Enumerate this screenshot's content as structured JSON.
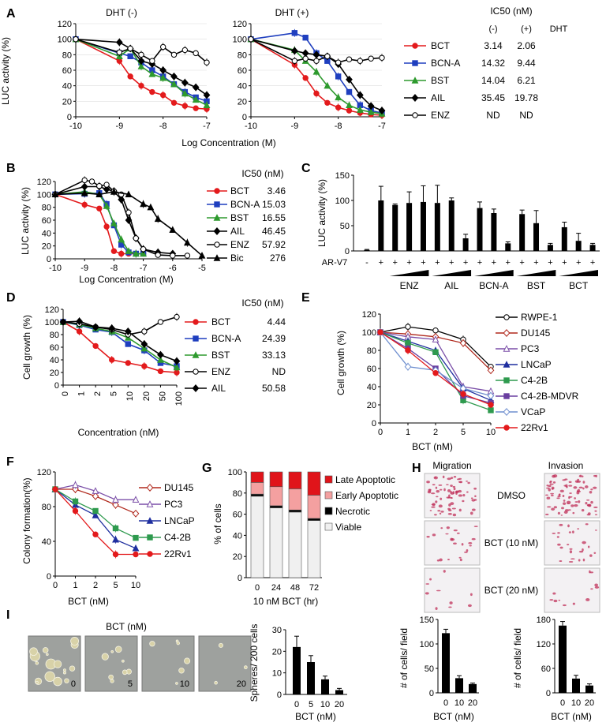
{
  "colors": {
    "BCT": "#e31a1c",
    "BCN-A": "#1f3fbf",
    "BST": "#2e9a2e",
    "AIL": "#000000",
    "ENZ": "#000000",
    "Bic": "#000000",
    "RWPE-1": "#000000",
    "DU145": "#b0281c",
    "PC3": "#7b4fa8",
    "LNCaP": "#1f2f9f",
    "C4-2B": "#2e9a4e",
    "C4-2B-MDVR": "#6a3fa0",
    "VCaP": "#6f8fcf",
    "22Rv1": "#e31a1c",
    "late": "#e0141a",
    "early": "#f4a0a0",
    "necrotic": "#000000",
    "viable": "#f0f0f0"
  },
  "panelA": {
    "letter": "A",
    "left": {
      "title": "DHT (-)"
    },
    "right": {
      "title": "DHT (+)"
    },
    "ylabel": "LUC activity (%)",
    "xlabel": "Log Concentration (M)",
    "yticks": [
      "0",
      "20",
      "40",
      "60",
      "80",
      "100",
      "120"
    ],
    "xticks": [
      "-10",
      "-9",
      "-8",
      "-7"
    ],
    "table": {
      "header": "IC50 (nM)",
      "col_minus": "(-)",
      "col_plus": "(+)",
      "col_dht": "DHT",
      "rows": [
        {
          "name": "BCT",
          "minus": "3.14",
          "plus": "2.06"
        },
        {
          "name": "BCN-A",
          "minus": "14.32",
          "plus": "9.44"
        },
        {
          "name": "BST",
          "minus": "14.04",
          "plus": "6.21"
        },
        {
          "name": "AIL",
          "minus": "35.45",
          "plus": "19.78"
        },
        {
          "name": "ENZ",
          "minus": "ND",
          "plus": "ND"
        }
      ]
    }
  },
  "panelB": {
    "letter": "B",
    "ylabel": "LUC activity (%)",
    "xlabel": "Log Concentration (M)",
    "yticks": [
      "0",
      "20",
      "40",
      "60",
      "80",
      "100",
      "120"
    ],
    "xticks": [
      "-10",
      "-9",
      "-8",
      "-7",
      "-6",
      "-5"
    ],
    "header": "IC50 (nM)",
    "legend": [
      {
        "name": "BCT",
        "ic50": "3.46"
      },
      {
        "name": "BCN-A",
        "ic50": "15.03"
      },
      {
        "name": "BST",
        "ic50": "16.55"
      },
      {
        "name": "AIL",
        "ic50": "46.45"
      },
      {
        "name": "ENZ",
        "ic50": "57.92"
      },
      {
        "name": "Bic",
        "ic50": "276"
      }
    ]
  },
  "panelC": {
    "letter": "C",
    "ylabel": "LUC activity (%)",
    "yticks": [
      "0",
      "50",
      "100",
      "150"
    ],
    "row_label": "AR-V7",
    "signs": [
      "-",
      "+",
      "+",
      "+",
      "+",
      "+",
      "+",
      "+",
      "+",
      "+",
      "+",
      "+",
      "+",
      "+",
      "+",
      "+",
      "+"
    ],
    "groups": [
      "ENZ",
      "AIL",
      "BCN-A",
      "BST",
      "BCT"
    ]
  },
  "panelD": {
    "letter": "D",
    "ylabel": "Cell growth (%)",
    "xlabel": "Concentration (nM)",
    "yticks": [
      "0",
      "20",
      "40",
      "60",
      "80",
      "100",
      "120"
    ],
    "xticks": [
      "0",
      "1",
      "2",
      "5",
      "10",
      "20",
      "50",
      "100"
    ],
    "header": "IC50 (nM)",
    "legend": [
      {
        "name": "BCT",
        "ic50": "4.44"
      },
      {
        "name": "BCN-A",
        "ic50": "24.39"
      },
      {
        "name": "BST",
        "ic50": "33.13"
      },
      {
        "name": "ENZ",
        "ic50": "ND"
      },
      {
        "name": "AIL",
        "ic50": "50.58"
      }
    ]
  },
  "panelE": {
    "letter": "E",
    "ylabel": "Cell growth (%)",
    "xlabel": "BCT (nM)",
    "yticks": [
      "0",
      "20",
      "40",
      "60",
      "80",
      "100",
      "120"
    ],
    "xticks": [
      "0",
      "1",
      "2",
      "5",
      "10"
    ],
    "legend": [
      "RWPE-1",
      "DU145",
      "PC3",
      "LNCaP",
      "C4-2B",
      "C4-2B-MDVR",
      "VCaP",
      "22Rv1"
    ]
  },
  "panelF": {
    "letter": "F",
    "ylabel": "Colony formation(%)",
    "xlabel": "BCT (nM)",
    "yticks": [
      "0",
      "40",
      "80",
      "120"
    ],
    "xticks": [
      "0",
      "1",
      "2",
      "5",
      "10"
    ],
    "legend": [
      "DU145",
      "PC3",
      "LNCaP",
      "C4-2B",
      "22Rv1"
    ]
  },
  "panelG": {
    "letter": "G",
    "ylabel": "% of cells",
    "xlabel": "10 nM BCT (hr)",
    "yticks": [
      "0",
      "20",
      "40",
      "60",
      "80",
      "100"
    ],
    "xticks": [
      "0",
      "24",
      "48",
      "72"
    ],
    "legend": [
      "Late Apoptotic",
      "Early Apoptotic",
      "Necrotic",
      "Viable"
    ]
  },
  "panelH": {
    "letter": "H",
    "migration": "Migration",
    "invasion": "Invasion",
    "rows": [
      "DMSO",
      "BCT (10 nM)",
      "BCT (20 nM)"
    ],
    "bar_ylabel": "# of cells/ field",
    "bar_xlabel": "BCT (nM)",
    "bar_xticks": [
      "0",
      "10",
      "20"
    ],
    "mig_yticks": [
      "0",
      "50",
      "100",
      "150"
    ],
    "inv_yticks": [
      "0",
      "60",
      "120",
      "180"
    ]
  },
  "panelI": {
    "letter": "I",
    "title": "BCT (nM)",
    "photos": [
      "0",
      "5",
      "10",
      "20"
    ],
    "bar_ylabel": "Spheres/ 200 cells",
    "bar_xlabel": "BCT (nM)",
    "bar_xticks": [
      "0",
      "5",
      "10",
      "20"
    ],
    "bar_yticks": [
      "0",
      "10",
      "20",
      "30"
    ]
  },
  "chart_data": [
    {
      "type": "line",
      "id": "A-left",
      "title": "DHT (-)",
      "xlabel": "Log Concentration (M)",
      "ylabel": "LUC activity (%)",
      "xlim": [
        -10,
        -7
      ],
      "ylim": [
        0,
        120
      ],
      "x": [
        -10,
        -9,
        -8.75,
        -8.5,
        -8.25,
        -8,
        -7.75,
        -7.5,
        -7.25,
        -7
      ],
      "series": [
        {
          "name": "BCT",
          "values": [
            100,
            72,
            52,
            40,
            32,
            28,
            18,
            14,
            11,
            10
          ]
        },
        {
          "name": "BCN-A",
          "values": [
            100,
            82,
            78,
            70,
            60,
            52,
            42,
            32,
            25,
            20
          ]
        },
        {
          "name": "BST",
          "values": [
            100,
            78,
            88,
            65,
            55,
            50,
            42,
            30,
            22,
            15
          ]
        },
        {
          "name": "AIL",
          "values": [
            100,
            96,
            88,
            72,
            68,
            60,
            52,
            44,
            38,
            28
          ]
        },
        {
          "name": "ENZ",
          "values": [
            100,
            83,
            88,
            80,
            72,
            90,
            80,
            86,
            82,
            70
          ]
        }
      ]
    },
    {
      "type": "line",
      "id": "A-right",
      "title": "DHT (+)",
      "xlabel": "Log Concentration (M)",
      "ylabel": "LUC activity (%)",
      "xlim": [
        -10,
        -7
      ],
      "ylim": [
        0,
        120
      ],
      "x": [
        -10,
        -9,
        -8.75,
        -8.5,
        -8.25,
        -8,
        -7.75,
        -7.5,
        -7.25,
        -7
      ],
      "series": [
        {
          "name": "BCT",
          "values": [
            100,
            67,
            50,
            30,
            18,
            12,
            8,
            5,
            3,
            2
          ]
        },
        {
          "name": "BCN-A",
          "values": [
            100,
            108,
            102,
            82,
            72,
            52,
            32,
            15,
            8,
            5
          ]
        },
        {
          "name": "BST",
          "values": [
            100,
            86,
            72,
            58,
            40,
            25,
            15,
            9,
            6,
            4
          ]
        },
        {
          "name": "AIL",
          "values": [
            100,
            85,
            82,
            80,
            78,
            68,
            48,
            28,
            14,
            8
          ]
        },
        {
          "name": "ENZ",
          "values": [
            100,
            72,
            75,
            72,
            78,
            70,
            74,
            72,
            75,
            76
          ]
        }
      ]
    },
    {
      "type": "line",
      "id": "B",
      "xlabel": "Log Concentration (M)",
      "ylabel": "LUC activity (%)",
      "xlim": [
        -10,
        -5
      ],
      "ylim": [
        0,
        120
      ],
      "series": [
        {
          "name": "BCT",
          "x": [
            -10,
            -9,
            -8.5,
            -8.25,
            -8,
            -7.75,
            -7.5,
            -7.25,
            -7
          ],
          "values": [
            100,
            84,
            78,
            50,
            12,
            8,
            8,
            8,
            8
          ]
        },
        {
          "name": "BCN-A",
          "x": [
            -10,
            -9,
            -8.5,
            -8.25,
            -8,
            -7.75,
            -7.5,
            -7.25,
            -7
          ],
          "values": [
            100,
            101,
            102,
            85,
            52,
            22,
            10,
            8,
            8
          ]
        },
        {
          "name": "BST",
          "x": [
            -10,
            -9,
            -8.5,
            -8.25,
            -8,
            -7.75,
            -7.5,
            -7.25,
            -7
          ],
          "values": [
            100,
            104,
            100,
            82,
            55,
            30,
            12,
            8,
            8
          ]
        },
        {
          "name": "AIL",
          "x": [
            -10,
            -9,
            -8.5,
            -8.25,
            -8,
            -7.75,
            -7.5,
            -7.25,
            -7,
            -6.5,
            -6
          ],
          "values": [
            100,
            112,
            112,
            108,
            105,
            92,
            60,
            32,
            15,
            10,
            8
          ]
        },
        {
          "name": "ENZ",
          "x": [
            -10,
            -9,
            -8.75,
            -8.5,
            -8.25,
            -8,
            -7.75,
            -7.5,
            -7.25,
            -7,
            -6.5,
            -6,
            -5.5
          ],
          "values": [
            100,
            122,
            120,
            113,
            115,
            105,
            100,
            72,
            32,
            15,
            6,
            5,
            5
          ]
        },
        {
          "name": "Bic",
          "x": [
            -10,
            -9,
            -8.5,
            -8,
            -7.5,
            -7,
            -6.75,
            -6.5,
            -6,
            -5.5,
            -5
          ],
          "values": [
            100,
            102,
            100,
            104,
            100,
            85,
            80,
            62,
            45,
            25,
            5
          ]
        }
      ]
    },
    {
      "type": "bar",
      "id": "C",
      "ylabel": "LUC activity (%)",
      "ylim": [
        0,
        150
      ],
      "categories": [
        "AR-V7 -",
        "+",
        "ENZ 1",
        "ENZ 2",
        "ENZ 3",
        "AIL 1",
        "AIL 2",
        "AIL 3",
        "BCN-A 1",
        "BCN-A 2",
        "BCN-A 3",
        "BST 1",
        "BST 2",
        "BST 3",
        "BCT 1",
        "BCT 2",
        "BCT 3"
      ],
      "values": [
        2,
        100,
        91,
        95,
        97,
        95,
        100,
        25,
        85,
        75,
        15,
        73,
        55,
        12,
        47,
        20,
        12
      ],
      "errors": [
        1,
        28,
        2,
        22,
        32,
        35,
        5,
        8,
        12,
        8,
        3,
        8,
        25,
        3,
        10,
        15,
        3
      ]
    },
    {
      "type": "line",
      "id": "D",
      "xlabel": "Concentration (nM)",
      "ylabel": "Cell growth (%)",
      "ylim": [
        0,
        120
      ],
      "categories": [
        "0",
        "1",
        "2",
        "5",
        "10",
        "20",
        "50",
        "100"
      ],
      "series": [
        {
          "name": "BCT",
          "values": [
            100,
            85,
            62,
            40,
            35,
            30,
            22,
            20
          ]
        },
        {
          "name": "BCN-A",
          "values": [
            100,
            95,
            88,
            84,
            65,
            55,
            35,
            30
          ]
        },
        {
          "name": "BST",
          "values": [
            100,
            96,
            90,
            85,
            75,
            58,
            40,
            28
          ]
        },
        {
          "name": "ENZ",
          "values": [
            100,
            97,
            92,
            88,
            80,
            85,
            100,
            108
          ]
        },
        {
          "name": "AIL",
          "values": [
            100,
            101,
            92,
            90,
            85,
            65,
            48,
            38
          ]
        }
      ]
    },
    {
      "type": "line",
      "id": "E",
      "xlabel": "BCT (nM)",
      "ylabel": "Cell growth (%)",
      "ylim": [
        0,
        120
      ],
      "categories": [
        "0",
        "1",
        "2",
        "5",
        "10"
      ],
      "series": [
        {
          "name": "RWPE-1",
          "values": [
            100,
            106,
            102,
            92,
            62
          ]
        },
        {
          "name": "DU145",
          "values": [
            100,
            98,
            95,
            88,
            58
          ]
        },
        {
          "name": "PC3",
          "values": [
            100,
            95,
            92,
            40,
            35
          ]
        },
        {
          "name": "LNCaP",
          "values": [
            100,
            90,
            80,
            38,
            25
          ]
        },
        {
          "name": "C4-2B",
          "values": [
            100,
            88,
            78,
            25,
            14
          ]
        },
        {
          "name": "C4-2B-MDVR",
          "values": [
            100,
            82,
            60,
            30,
            22
          ]
        },
        {
          "name": "VCaP",
          "values": [
            100,
            62,
            58,
            38,
            30
          ]
        },
        {
          "name": "22Rv1",
          "values": [
            100,
            80,
            55,
            32,
            20
          ]
        }
      ]
    },
    {
      "type": "line",
      "id": "F",
      "xlabel": "BCT (nM)",
      "ylabel": "Colony formation(%)",
      "ylim": [
        0,
        120
      ],
      "categories": [
        "0",
        "1",
        "2",
        "5",
        "10"
      ],
      "series": [
        {
          "name": "DU145",
          "values": [
            100,
            100,
            92,
            82,
            72
          ]
        },
        {
          "name": "PC3",
          "values": [
            100,
            105,
            98,
            88,
            88
          ]
        },
        {
          "name": "LNCaP",
          "values": [
            100,
            82,
            70,
            42,
            32
          ]
        },
        {
          "name": "C4-2B",
          "values": [
            100,
            86,
            75,
            55,
            44
          ]
        },
        {
          "name": "22Rv1",
          "values": [
            100,
            75,
            48,
            25,
            25
          ]
        }
      ]
    },
    {
      "type": "bar",
      "id": "G",
      "stacked": true,
      "xlabel": "10 nM BCT (hr)",
      "ylabel": "% of cells",
      "ylim": [
        0,
        100
      ],
      "categories": [
        "0",
        "24",
        "48",
        "72"
      ],
      "series": [
        {
          "name": "Viable",
          "values": [
            77,
            66,
            62,
            54
          ]
        },
        {
          "name": "Necrotic",
          "values": [
            2,
            2,
            2,
            2
          ]
        },
        {
          "name": "Early Apoptotic",
          "values": [
            11,
            18,
            20,
            22
          ]
        },
        {
          "name": "Late Apoptotic",
          "values": [
            10,
            14,
            16,
            22
          ]
        }
      ]
    },
    {
      "type": "bar",
      "id": "H-migration",
      "xlabel": "BCT (nM)",
      "ylabel": "# of cells/ field",
      "ylim": [
        0,
        150
      ],
      "categories": [
        "0",
        "10",
        "20"
      ],
      "values": [
        122,
        30,
        18
      ],
      "errors": [
        8,
        5,
        2
      ]
    },
    {
      "type": "bar",
      "id": "H-invasion",
      "xlabel": "BCT (nM)",
      "ylabel": "# of cells/ field",
      "ylim": [
        0,
        180
      ],
      "categories": [
        "0",
        "10",
        "20"
      ],
      "values": [
        165,
        35,
        18
      ],
      "errors": [
        10,
        8,
        4
      ]
    },
    {
      "type": "bar",
      "id": "I",
      "xlabel": "BCT (nM)",
      "ylabel": "Spheres/ 200 cells",
      "ylim": [
        0,
        30
      ],
      "categories": [
        "0",
        "5",
        "10",
        "20"
      ],
      "values": [
        22,
        15,
        7,
        2
      ],
      "errors": [
        5,
        3,
        1.5,
        0.8
      ]
    }
  ]
}
